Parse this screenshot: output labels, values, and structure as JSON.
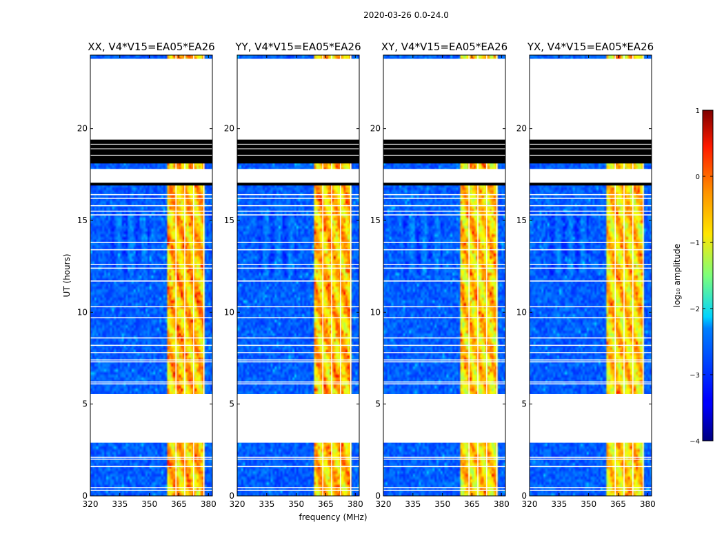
{
  "figure": {
    "title": "2020-03-26 0.0-24.0",
    "ylabel": "UT (hours)",
    "xlabel": "frequency (MHz)"
  },
  "chart_data": {
    "type": "heatmap",
    "panels": [
      {
        "title": "XX, V4*V15=EA05*EA26",
        "strength": 1.0
      },
      {
        "title": "YY, V4*V15=EA05*EA26",
        "strength": 0.95
      },
      {
        "title": "XY, V4*V15=EA05*EA26",
        "strength": 0.8
      },
      {
        "title": "YX, V4*V15=EA05*EA26",
        "strength": 0.8
      }
    ],
    "xlim": [
      320,
      382
    ],
    "ylim": [
      0,
      24
    ],
    "xticks": [
      320,
      335,
      350,
      365,
      380
    ],
    "yticks": [
      0,
      5,
      10,
      15,
      20
    ],
    "ytick_labels": [
      "0",
      "5",
      "10",
      "15",
      "20"
    ],
    "xtick_labels": [
      "320",
      "335",
      "350",
      "365",
      "380"
    ],
    "band_freq_range_mhz": [
      359,
      378
    ],
    "band_channel_gaps_mhz": [
      363.5,
      368,
      372.5
    ],
    "flagged_no_data_ut": [
      [
        2.9,
        5.55
      ],
      [
        17.0,
        17.8
      ],
      [
        18.35,
        23.8
      ]
    ],
    "flagged_saturated_ut": [
      [
        18.1,
        19.4
      ],
      [
        16.9,
        17.05
      ]
    ],
    "flag_lines_ut": [
      0.3,
      0.45,
      1.6,
      2.0,
      2.1,
      6.1,
      6.2,
      7.3,
      7.4,
      7.8,
      8.2,
      8.6,
      9.7,
      10.3,
      11.7,
      12.4,
      12.6,
      13.4,
      13.8,
      15.3,
      15.5,
      15.8,
      16.2,
      16.4
    ],
    "colorbar": {
      "label": "log₁₀ amplitude",
      "range": [
        -4,
        1
      ],
      "ticks": [
        1,
        0,
        -1,
        -2,
        -3,
        -4
      ],
      "tick_labels": [
        "1",
        "0",
        "−1",
        "−2",
        "−3",
        "−4"
      ],
      "colormap": "jet"
    }
  }
}
